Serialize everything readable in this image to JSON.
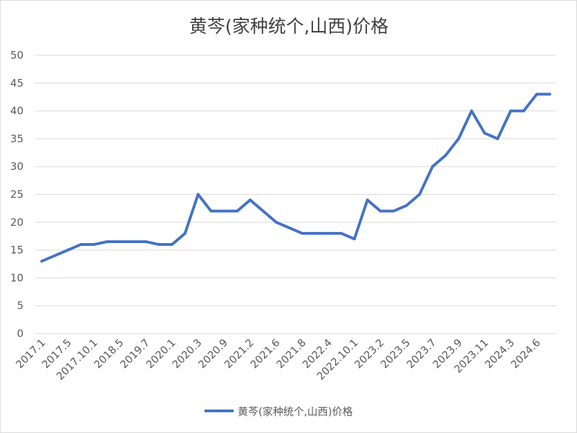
{
  "chart_data": {
    "type": "line",
    "title": "黄芩(家种统个,山西)价格",
    "xlabel": "",
    "ylabel": "",
    "ylim": [
      0,
      50
    ],
    "yticks": [
      0,
      5,
      10,
      15,
      20,
      25,
      30,
      35,
      40,
      45,
      50
    ],
    "grid": true,
    "legend_position": "bottom",
    "x_tick_labels": [
      "2017.1",
      "2017.5",
      "2017.10.1",
      "2018.5",
      "2019.7",
      "2020.1",
      "2020.3",
      "2020.9",
      "2021.2",
      "2021.6",
      "2021.8",
      "2022.4",
      "2022.10.1",
      "2023.2",
      "2023.5",
      "2023.7",
      "2023.9",
      "2023.11",
      "2024.3",
      "2024.6"
    ],
    "series": [
      {
        "name": "黄芩(家种统个,山西)价格",
        "color": "#4472c4",
        "values": [
          13,
          14,
          15,
          16,
          16,
          16.5,
          16.5,
          16.5,
          16.5,
          16,
          16,
          18,
          25,
          22,
          22,
          22,
          24,
          22,
          20,
          19,
          18,
          18,
          18,
          18,
          17,
          24,
          22,
          22,
          23,
          25,
          30,
          32,
          35,
          40,
          36,
          35,
          40,
          40,
          43,
          43
        ]
      }
    ]
  }
}
